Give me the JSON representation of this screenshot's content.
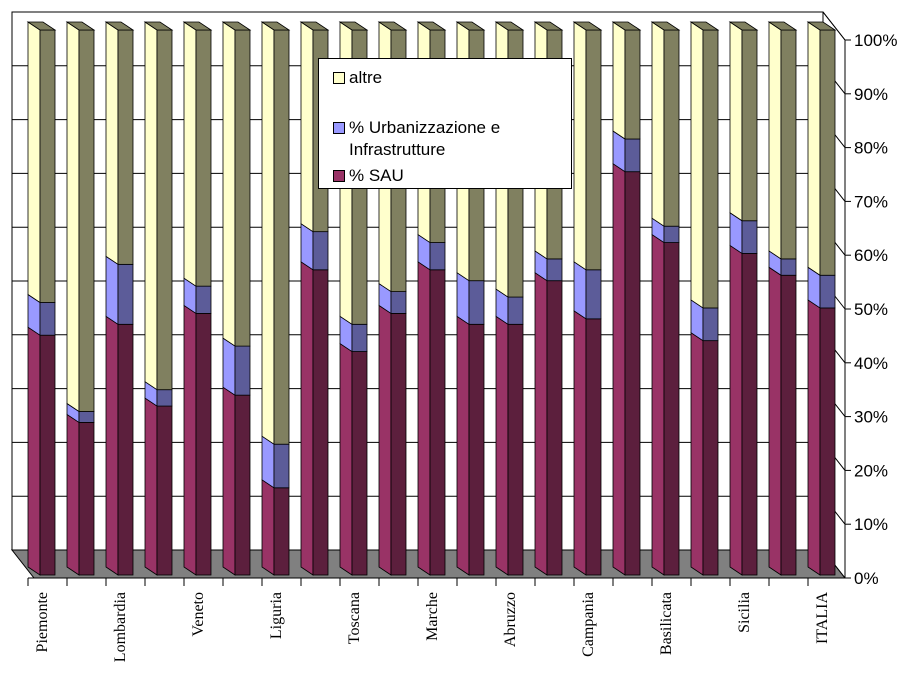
{
  "chart_data": {
    "type": "bar",
    "stacked": true,
    "categories": [
      "Piemonte",
      null,
      "Lombardia",
      null,
      "Veneto",
      null,
      "Liguria",
      null,
      "Toscana",
      null,
      "Marche",
      null,
      "Abruzzo",
      null,
      "Campania",
      null,
      "Basilicata",
      null,
      "Sicilia",
      null,
      "ITALIA"
    ],
    "series": [
      {
        "name": "% SAU",
        "color": "#993366",
        "values": [
          44,
          28,
          46,
          31,
          48,
          33,
          16,
          56,
          41,
          48,
          56,
          46,
          46,
          54,
          47,
          74,
          61,
          43,
          59,
          55,
          49
        ]
      },
      {
        "name": "% Urbanizzazione e Infrastrutture",
        "color": "#9999ff",
        "values": [
          6,
          2,
          11,
          3,
          5,
          9,
          8,
          7,
          5,
          4,
          5,
          8,
          5,
          4,
          9,
          6,
          3,
          6,
          6,
          3,
          6
        ]
      },
      {
        "name": "altre",
        "color": "#ffffcc",
        "values": [
          50,
          70,
          43,
          66,
          47,
          58,
          76,
          37,
          54,
          48,
          39,
          46,
          49,
          42,
          44,
          20,
          36,
          51,
          35,
          42,
          45
        ]
      }
    ],
    "ylim": [
      0,
      100
    ],
    "yticks": [
      {
        "value": 0,
        "label": "0%"
      },
      {
        "value": 10,
        "label": "10%"
      },
      {
        "value": 20,
        "label": "20%"
      },
      {
        "value": 30,
        "label": "30%"
      },
      {
        "value": 40,
        "label": "40%"
      },
      {
        "value": 50,
        "label": "50%"
      },
      {
        "value": 60,
        "label": "60%"
      },
      {
        "value": 70,
        "label": "70%"
      },
      {
        "value": 80,
        "label": "80%"
      },
      {
        "value": 90,
        "label": "90%"
      },
      {
        "value": 100,
        "label": "100%"
      }
    ],
    "grid": true
  }
}
